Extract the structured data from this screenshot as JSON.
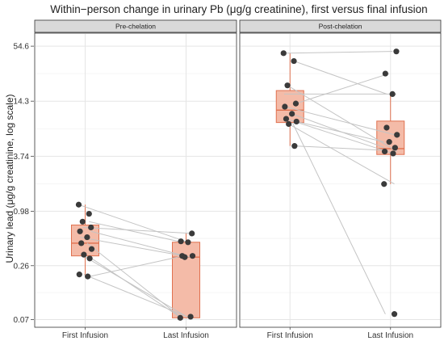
{
  "chart_data": {
    "type": "boxplot-paired",
    "title": "Within−person change in urinary Pb (μg/g creatinine), first versus final infusion",
    "ylabel": "Urinary lead (μg/g creatinine, log scale)",
    "xlabel": "",
    "y_scale": "log",
    "ylim": [
      0.058,
      75
    ],
    "y_ticks": [
      0.07,
      0.26,
      0.98,
      3.74,
      14.3,
      54.6
    ],
    "y_tick_labels": [
      "0.07",
      "0.26",
      "0.98",
      "3.74",
      "14.3",
      "54.6"
    ],
    "categories": [
      "First Infusion",
      "Last Infusion"
    ],
    "grid": true,
    "colors": {
      "box_fill": "#f4bba8",
      "box_line": "#e0714f",
      "point": "#3a3a3a",
      "pair_line": "#c4c4c4"
    },
    "panels": [
      {
        "label": "Pre-chelation",
        "first_infusion": [
          1.15,
          0.92,
          0.76,
          0.66,
          0.6,
          0.52,
          0.45,
          0.39,
          0.34,
          0.31,
          0.21,
          0.2
        ],
        "last_infusion": [
          0.57,
          0.47,
          0.46,
          0.33,
          0.33,
          0.32,
          0.075,
          0.073
        ],
        "box_first": {
          "q1": 0.33,
          "median": 0.45,
          "q3": 0.7,
          "whisker_low": 0.2,
          "whisker_high": 1.15
        },
        "box_last": {
          "q1": 0.073,
          "median": 0.32,
          "q3": 0.46,
          "whisker_low": 0.073,
          "whisker_high": 0.57
        },
        "pairs": [
          [
            1.15,
            0.46
          ],
          [
            0.76,
            0.46
          ],
          [
            0.66,
            0.57
          ],
          [
            0.6,
            0.33
          ],
          [
            0.52,
            0.32
          ],
          [
            0.45,
            0.075
          ],
          [
            0.34,
            0.073
          ],
          [
            0.31,
            0.075
          ],
          [
            0.21,
            0.073
          ],
          [
            0.2,
            0.33
          ]
        ]
      },
      {
        "label": "Post-chelation",
        "first_infusion": [
          46,
          38,
          21,
          13.5,
          12.5,
          10.5,
          9.3,
          8.7,
          8.2,
          4.8
        ],
        "last_infusion": [
          48,
          28,
          17,
          7.5,
          6.3,
          5.3,
          4.6,
          4.2,
          4.0,
          1.9,
          0.08
        ],
        "box_first": {
          "q1": 8.5,
          "median": 11.5,
          "q3": 18.5,
          "whisker_low": 4.8,
          "whisker_high": 46
        },
        "box_last": {
          "q1": 3.9,
          "median": 4.5,
          "q3": 8.8,
          "whisker_low": 1.9,
          "whisker_high": 17
        },
        "pairs": [
          [
            46,
            48
          ],
          [
            38,
            17
          ],
          [
            21,
            4.2
          ],
          [
            13.5,
            28
          ],
          [
            12.5,
            6.3
          ],
          [
            10.5,
            4.6
          ],
          [
            9.3,
            4.0
          ],
          [
            8.7,
            5.3
          ],
          [
            8.2,
            1.9
          ],
          [
            4.8,
            4.3
          ],
          [
            17,
            17
          ],
          [
            8.4,
            0.08
          ]
        ]
      }
    ]
  }
}
